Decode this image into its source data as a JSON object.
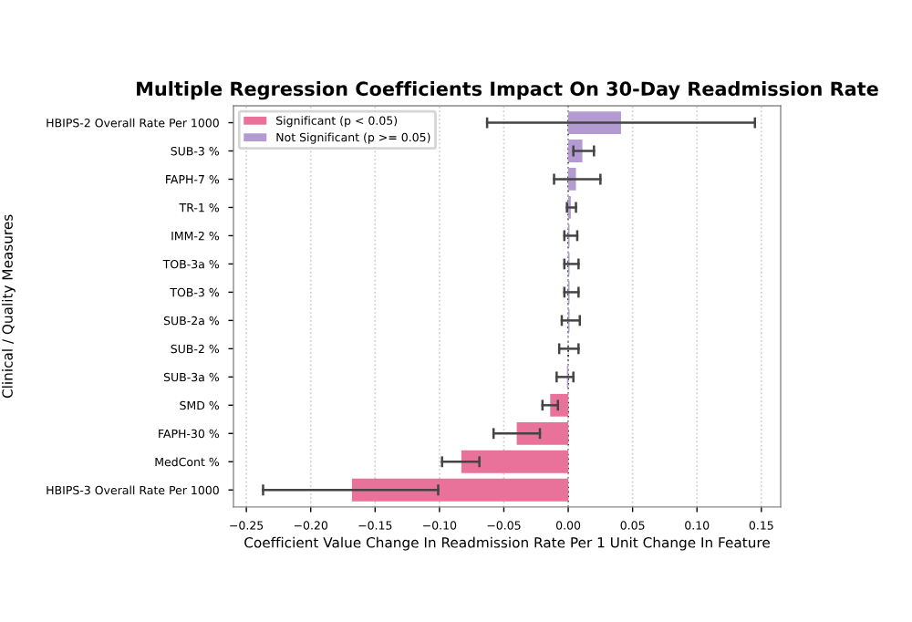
{
  "chart_data": {
    "type": "bar",
    "orientation": "horizontal",
    "title": "Multiple Regression Coefficients Impact On 30-Day Readmission Rate",
    "xlabel": "Coefficient Value Change In Readmission Rate Per 1 Unit Change In Feature",
    "ylabel": "Clinical / Quality Measures",
    "categories": [
      "HBIPS-2 Overall Rate Per 1000",
      "SUB-3 %",
      "FAPH-7 %",
      "TR-1 %",
      "IMM-2 %",
      "TOB-3a %",
      "TOB-3 %",
      "SUB-2a %",
      "SUB-2 %",
      "SUB-3a %",
      "SMD %",
      "FAPH-30 %",
      "MedCont %",
      "HBIPS-3 Overall Rate Per 1000"
    ],
    "series": [
      {
        "name": "Significant (p < 0.05)",
        "color": "#e8729a",
        "values": [
          null,
          null,
          null,
          null,
          null,
          null,
          null,
          null,
          null,
          null,
          -0.014,
          -0.04,
          -0.083,
          -0.168
        ],
        "errors": [
          null,
          null,
          null,
          null,
          null,
          null,
          null,
          null,
          null,
          null,
          [
            -0.02,
            -0.008
          ],
          [
            -0.058,
            -0.022
          ],
          [
            -0.098,
            -0.069
          ],
          [
            -0.237,
            -0.101
          ]
        ]
      },
      {
        "name": "Not Significant (p >= 0.05)",
        "color": "#b39bd1",
        "values": [
          0.041,
          0.011,
          0.006,
          0.002,
          0.001,
          0.001,
          0.001,
          0.001,
          0.0,
          -0.001,
          null,
          null,
          null,
          null
        ],
        "errors": [
          [
            -0.063,
            0.145
          ],
          [
            0.004,
            0.02
          ],
          [
            -0.011,
            0.025
          ],
          [
            -0.001,
            0.006
          ],
          [
            -0.003,
            0.007
          ],
          [
            -0.003,
            0.008
          ],
          [
            -0.003,
            0.008
          ],
          [
            -0.005,
            0.009
          ],
          [
            -0.007,
            0.008
          ],
          [
            -0.009,
            0.004
          ],
          null,
          null,
          null,
          null
        ]
      }
    ],
    "xlim": [
      -0.26,
      0.165
    ],
    "xticks": [
      {
        "value": -0.25,
        "label": "−0.25"
      },
      {
        "value": -0.2,
        "label": "−0.20"
      },
      {
        "value": -0.15,
        "label": "−0.15"
      },
      {
        "value": -0.1,
        "label": "−0.10"
      },
      {
        "value": -0.05,
        "label": "−0.05"
      },
      {
        "value": 0,
        "label": "0.00"
      },
      {
        "value": 0.05,
        "label": "0.05"
      },
      {
        "value": 0.1,
        "label": "0.10"
      },
      {
        "value": 0.15,
        "label": "0.15"
      }
    ],
    "ref_lines": [
      {
        "axis": "x",
        "value": 0,
        "color": "#333333",
        "line_style": "dotted"
      }
    ],
    "grid": "x",
    "legend": "top left"
  }
}
